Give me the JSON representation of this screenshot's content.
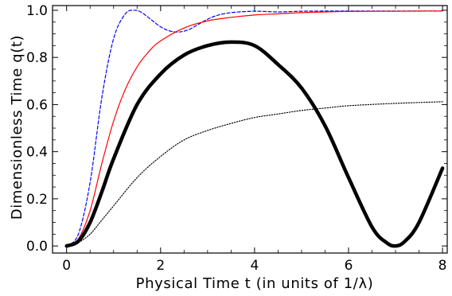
{
  "chart_data": {
    "type": "line",
    "xlabel": "Physical Time t (in units of 1/λ)",
    "ylabel": "Dimensionless Time q(t)",
    "xlim": [
      -0.3,
      8.1
    ],
    "ylim": [
      -0.03,
      1.02
    ],
    "x_ticks": [
      0,
      2,
      4,
      6,
      8
    ],
    "x_tick_labels": [
      "0",
      "2",
      "4",
      "6",
      "8"
    ],
    "y_ticks": [
      0.0,
      0.2,
      0.4,
      0.6,
      0.8,
      1.0
    ],
    "y_tick_labels": [
      "0.0",
      "0.2",
      "0.4",
      "0.6",
      "0.8",
      "1.0"
    ],
    "grid": false,
    "series": [
      {
        "style": "dashed",
        "color": "#0000ff",
        "x": [
          0,
          0.25,
          0.5,
          0.75,
          1.0,
          1.25,
          1.45,
          1.6,
          1.8,
          2.0,
          2.2,
          2.4,
          2.6,
          2.8,
          3.0,
          3.2,
          3.5,
          4.0,
          4.5,
          5.0,
          6.0,
          7.0,
          8.0
        ],
        "y": [
          0.0,
          0.05,
          0.27,
          0.63,
          0.88,
          0.985,
          1.0,
          0.99,
          0.96,
          0.93,
          0.912,
          0.908,
          0.918,
          0.94,
          0.962,
          0.978,
          0.99,
          0.996,
          0.993,
          0.996,
          0.997,
          0.997,
          0.997
        ]
      },
      {
        "style": "solid",
        "color": "#ff0000",
        "x": [
          0,
          0.25,
          0.5,
          0.75,
          1.0,
          1.25,
          1.5,
          1.75,
          2.0,
          2.5,
          3.0,
          3.5,
          4.0,
          4.5,
          5.0,
          5.5,
          6.0,
          7.0,
          8.0
        ],
        "y": [
          0.0,
          0.03,
          0.15,
          0.35,
          0.53,
          0.665,
          0.76,
          0.825,
          0.87,
          0.925,
          0.955,
          0.97,
          0.98,
          0.985,
          0.99,
          0.993,
          0.995,
          0.996,
          0.997
        ]
      },
      {
        "style": "thick",
        "color": "#000000",
        "x": [
          0,
          0.25,
          0.5,
          0.75,
          1.0,
          1.5,
          2.0,
          2.5,
          3.0,
          3.5,
          4.0,
          4.5,
          5.0,
          5.5,
          6.0,
          6.5,
          6.8,
          7.0,
          7.2,
          7.5,
          8.0
        ],
        "y": [
          0.0,
          0.02,
          0.1,
          0.23,
          0.37,
          0.6,
          0.73,
          0.81,
          0.85,
          0.865,
          0.85,
          0.77,
          0.67,
          0.51,
          0.29,
          0.08,
          0.015,
          0.0,
          0.02,
          0.1,
          0.33
        ]
      },
      {
        "style": "dotted",
        "color": "#000000",
        "x": [
          0,
          0.25,
          0.5,
          0.75,
          1.0,
          1.5,
          2.0,
          2.5,
          3.0,
          3.5,
          4.0,
          4.5,
          5.0,
          5.5,
          6.0,
          7.0,
          8.0
        ],
        "y": [
          0.0,
          0.015,
          0.05,
          0.11,
          0.17,
          0.29,
          0.38,
          0.45,
          0.49,
          0.52,
          0.545,
          0.56,
          0.575,
          0.585,
          0.595,
          0.605,
          0.612
        ]
      }
    ]
  }
}
